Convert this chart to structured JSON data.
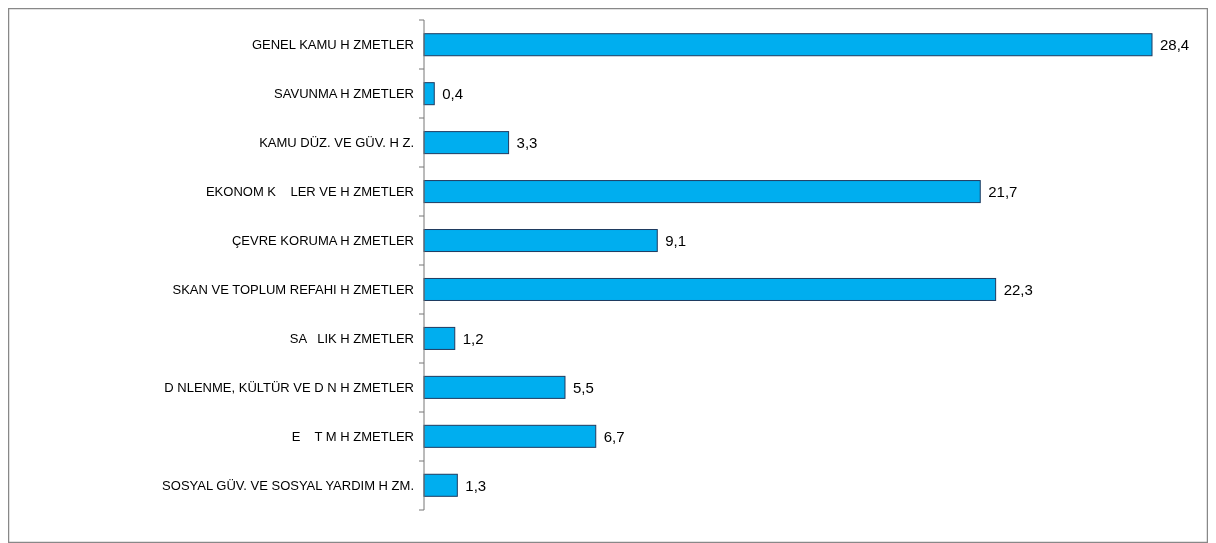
{
  "chart_data": {
    "type": "bar",
    "orientation": "horizontal",
    "categories": [
      "GENEL KAMU H ZMETLER",
      "SAVUNMA H ZMETLER",
      "KAMU DÜZ. VE GÜV. H Z.",
      "EKONOM K    LER VE H ZMETLER",
      "ÇEVRE KORUMA H ZMETLER",
      "SKAN VE TOPLUM REFAHI H ZMETLER",
      "SA   LIK H ZMETLER",
      "D NLENME, KÜLTÜR VE D N H ZMETLER",
      "E    T M H ZMETLER",
      "SOSYAL GÜV. VE SOSYAL YARDIM H ZM."
    ],
    "values": [
      28.4,
      0.4,
      3.3,
      21.7,
      9.1,
      22.3,
      1.2,
      5.5,
      6.7,
      1.3
    ],
    "value_labels": [
      "28,4",
      "0,4",
      "3,3",
      "21,7",
      "9,1",
      "22,3",
      "1,2",
      "5,5",
      "6,7",
      "1,3"
    ],
    "color": "#00aeef"
  }
}
